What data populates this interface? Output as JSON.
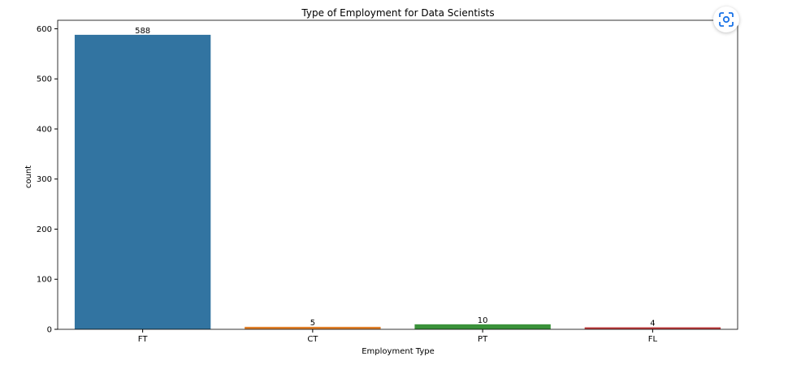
{
  "chart_data": {
    "type": "bar",
    "title": "Type of Employment for Data Scientists",
    "xlabel": "Employment Type",
    "ylabel": "count",
    "categories": [
      "FT",
      "CT",
      "PT",
      "FL"
    ],
    "values": [
      588,
      5,
      10,
      4
    ],
    "colors": [
      "#3274a1",
      "#e1812c",
      "#3a923a",
      "#c03d3e"
    ],
    "ylim": [
      0,
      617
    ],
    "yticks": [
      0,
      100,
      200,
      300,
      400,
      500,
      600
    ],
    "data_labels": true,
    "grid": false
  },
  "overlay": {
    "icon": "lens-scan-icon",
    "accent": "#1a73e8"
  }
}
